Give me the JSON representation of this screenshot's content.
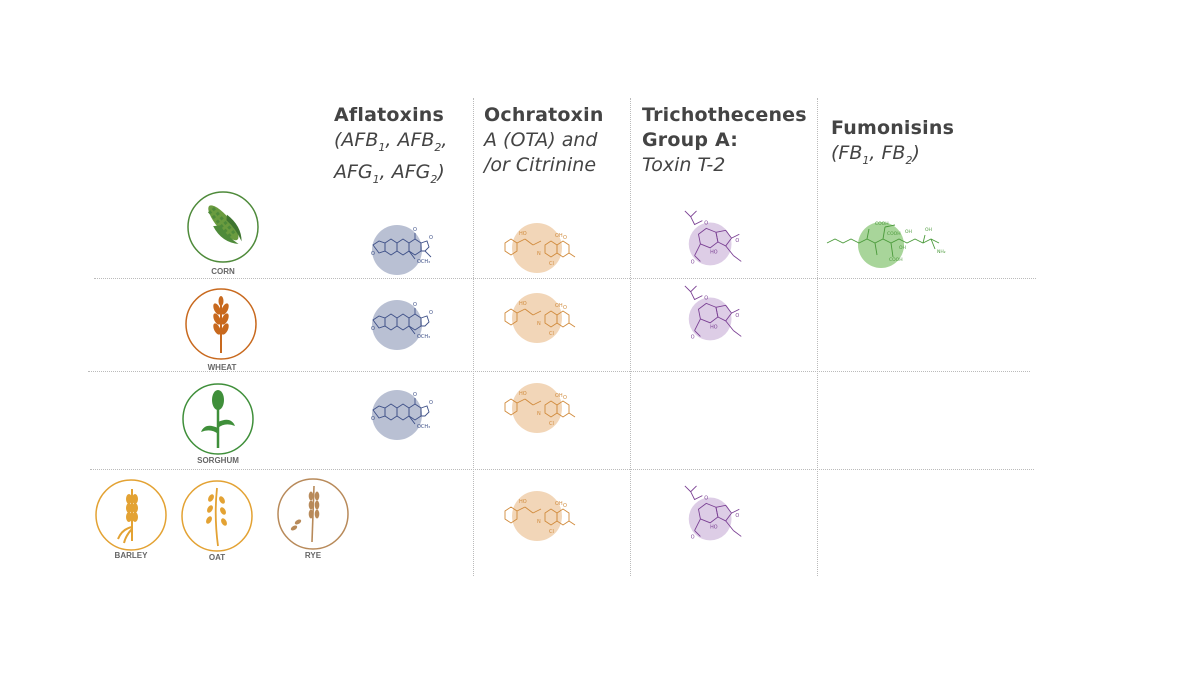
{
  "headers": [
    {
      "title": "Aflatoxins",
      "sub1": "(AFB",
      "s1": "1",
      "sub1b": ", AFB",
      "s2": "2",
      "sub1c": ",",
      "sub2": "AFG",
      "s3": "1",
      "sub2b": ", AFG",
      "s4": "2",
      "sub2c": ")"
    },
    {
      "title": "Ochratoxin",
      "line2": "A (OTA) and",
      "line3": "/or Citrinine"
    },
    {
      "title": "Trichothecenes",
      "title2": "Group A:",
      "line3": "Toxin T-2"
    },
    {
      "title": "Fumonisins",
      "sub1": "(FB",
      "s1": "1",
      "sub1b": ", FB",
      "s2": "2",
      "sub1c": ")"
    }
  ],
  "crops": {
    "corn": {
      "label": "CORN",
      "color": "#4e8a3a"
    },
    "wheat": {
      "label": "WHEAT",
      "color": "#c8691e"
    },
    "sorghum": {
      "label": "SORGHUM",
      "color": "#3f8f3a"
    },
    "barley": {
      "label": "BARLEY",
      "color": "#e3a233"
    },
    "oat": {
      "label": "OAT",
      "color": "#e3a233"
    },
    "rye": {
      "label": "RYE",
      "color": "#b88a5a"
    }
  },
  "colors": {
    "aflatoxin": "#a7b0c8",
    "ochratoxin": "#f0cfac",
    "trichothecene": "#d9c8e3",
    "fumonisin": "#9fd08f"
  },
  "icons": [
    "corn-icon",
    "wheat-icon",
    "sorghum-icon",
    "barley-icon",
    "oat-icon",
    "rye-icon"
  ]
}
